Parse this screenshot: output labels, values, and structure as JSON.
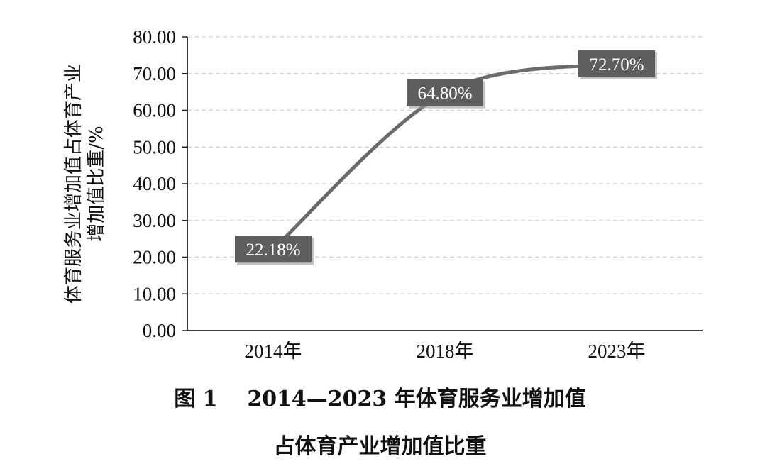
{
  "chart_data": {
    "type": "line",
    "categories": [
      "2014年",
      "2018年",
      "2023年"
    ],
    "values": [
      22.18,
      64.8,
      72.7
    ],
    "data_labels": [
      "22.18%",
      "64.80%",
      "72.70%"
    ],
    "ylabel_lines": [
      "体育服务业增加值占体育产业",
      "增加值比重/%"
    ],
    "ylim": [
      0,
      80
    ],
    "yticks": [
      "0.00",
      "10.00",
      "20.00",
      "30.00",
      "40.00",
      "50.00",
      "60.00",
      "70.00",
      "80.00"
    ],
    "grid": true,
    "legend": "none"
  },
  "caption": {
    "line1": "图 1    2014—2023 年体育服务业增加值",
    "line2": "占体育产业增加值比重"
  },
  "colors": {
    "line": "#6a6a6a",
    "label_box": "#5e5e5e",
    "grid": "#d0d0d0",
    "axis": "#222222"
  }
}
